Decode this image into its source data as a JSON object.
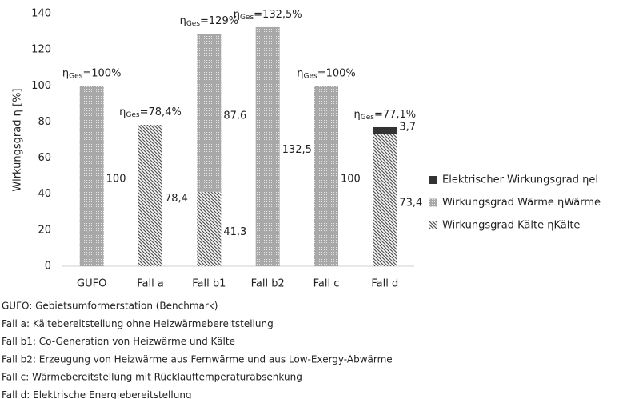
{
  "chart_data": {
    "type": "stacked_bar",
    "y_label": "Wirkungsgrad η [%]",
    "categories": [
      "GUFO",
      "Fall a",
      "Fall b1",
      "Fall b2",
      "Fall c",
      "Fall d"
    ],
    "series": [
      {
        "name": "Wirkungsgrad Kälte ηKälte",
        "color": "#555555",
        "pattern": "hatch",
        "values": [
          null,
          78.4,
          41.3,
          null,
          null,
          73.4
        ],
        "value_labels": [
          null,
          "78,4",
          "41,3",
          null,
          null,
          "73,4"
        ]
      },
      {
        "name": "Wirkungsgrad Wärme  ηWärme",
        "color": "#a8a8a8",
        "pattern": "dots",
        "values": [
          100,
          null,
          87.6,
          132.5,
          100,
          null
        ],
        "value_labels": [
          "100",
          null,
          "87,6",
          "132,5",
          "100",
          null
        ]
      },
      {
        "name": "Elektrischer Wirkungsgrad  ηel",
        "color": "#333333",
        "pattern": "solid",
        "values": [
          null,
          null,
          null,
          null,
          null,
          3.7
        ],
        "value_labels": [
          null,
          null,
          null,
          null,
          null,
          "3,7"
        ]
      }
    ],
    "annotations": [
      {
        "symbol": "η",
        "subscript": "Ges",
        "text": "=100%"
      },
      {
        "symbol": "η",
        "subscript": "Ges",
        "text": "=78,4%"
      },
      {
        "symbol": "η",
        "subscript": "Ges",
        "text": "=129%"
      },
      {
        "symbol": "η",
        "subscript": "Ges",
        "text": "=132,5%"
      },
      {
        "symbol": "η",
        "subscript": "Ges",
        "text": "=100%"
      },
      {
        "symbol": "η",
        "subscript": "Ges",
        "text": "=77,1%"
      }
    ],
    "ylim": [
      0,
      140
    ],
    "yticks": [
      0,
      20,
      40,
      60,
      80,
      100,
      120,
      140
    ],
    "legend": "right",
    "footnotes": [
      "GUFO: Gebietsumformerstation (Benchmark)",
      "Fall a: Kältebereitstellung ohne Heizwärmebereitstellung",
      "Fall b1: Co-Generation von Heizwärme und Kälte",
      "Fall b2: Erzeugung von Heizwärme aus Fernwärme und aus Low-Exergy-Abwärme",
      "Fall c: Wärmebereitstellung mit Rücklauftemperaturabsenkung",
      "Fall d: Elektrische Energiebereitstellung"
    ]
  }
}
